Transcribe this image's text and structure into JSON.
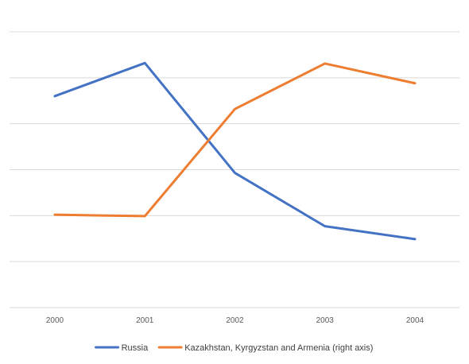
{
  "chart_data": {
    "type": "line",
    "categories": [
      "2000",
      "2001",
      "2002",
      "2003",
      "2004"
    ],
    "series": [
      {
        "name": "Russia",
        "axis": "left",
        "color": "#4472C4",
        "values": [
          4.6,
          5.32,
          2.93,
          1.77,
          1.49
        ]
      },
      {
        "name": "Kazakhstan, Kyrgyzstan and Armenia (right axis)",
        "axis": "right",
        "color": "#ED7D31",
        "values": [
          2.02,
          1.99,
          4.32,
          5.31,
          4.88
        ]
      }
    ],
    "left_ylim": [
      0,
      6
    ],
    "right_ylim": [
      0,
      6
    ],
    "y_tick_labels_shown": false,
    "grid": true,
    "legend_position": "bottom"
  },
  "colors": {
    "grid": "#d9d9d9",
    "axis": "#d9d9d9",
    "text": "#595959",
    "background": "#ffffff"
  }
}
